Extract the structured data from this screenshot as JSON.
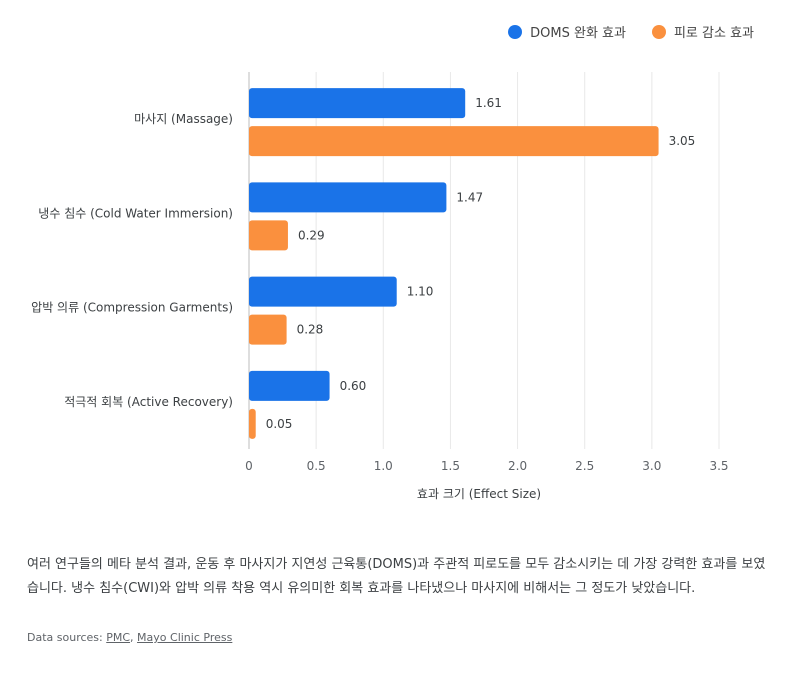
{
  "chart_data": {
    "type": "bar",
    "orientation": "horizontal",
    "categories": [
      "마사지 (Massage)",
      "냉수 침수 (Cold Water Immersion)",
      "압박 의류 (Compression Garments)",
      "적극적 회복 (Active Recovery)"
    ],
    "series": [
      {
        "name": "DOMS 완화 효과",
        "color": "#1a73e8",
        "values": [
          1.61,
          1.47,
          1.1,
          0.6
        ],
        "labels": [
          "1.61",
          "1.47",
          "1.10",
          "0.60"
        ]
      },
      {
        "name": "피로 감소 효과",
        "color": "#fa903e",
        "values": [
          3.05,
          0.29,
          0.28,
          0.05
        ],
        "labels": [
          "3.05",
          "0.29",
          "0.28",
          "0.05"
        ]
      }
    ],
    "xlabel": "효과 크기 (Effect Size)",
    "xlim": [
      0,
      3.5
    ],
    "xticks": [
      "0",
      "0.5",
      "1.0",
      "1.5",
      "2.0",
      "2.5",
      "3.0",
      "3.5"
    ],
    "grid": true,
    "legend": "top-right"
  },
  "description": "여러 연구들의 메타 분석 결과, 운동 후 마사지가 지연성 근육통(DOMS)과 주관적 피로도를 모두 감소시키는 데 가장 강력한 효과를 보였습니다. 냉수 침수(CWI)와 압박 의류 착용 역시 유의미한 회복 효과를 나타냈으나 마사지에 비해서는 그 정도가 낮았습니다.",
  "sources": {
    "prefix": "Data sources: ",
    "links": [
      "PMC",
      "Mayo Clinic Press"
    ],
    "separator": ", "
  }
}
